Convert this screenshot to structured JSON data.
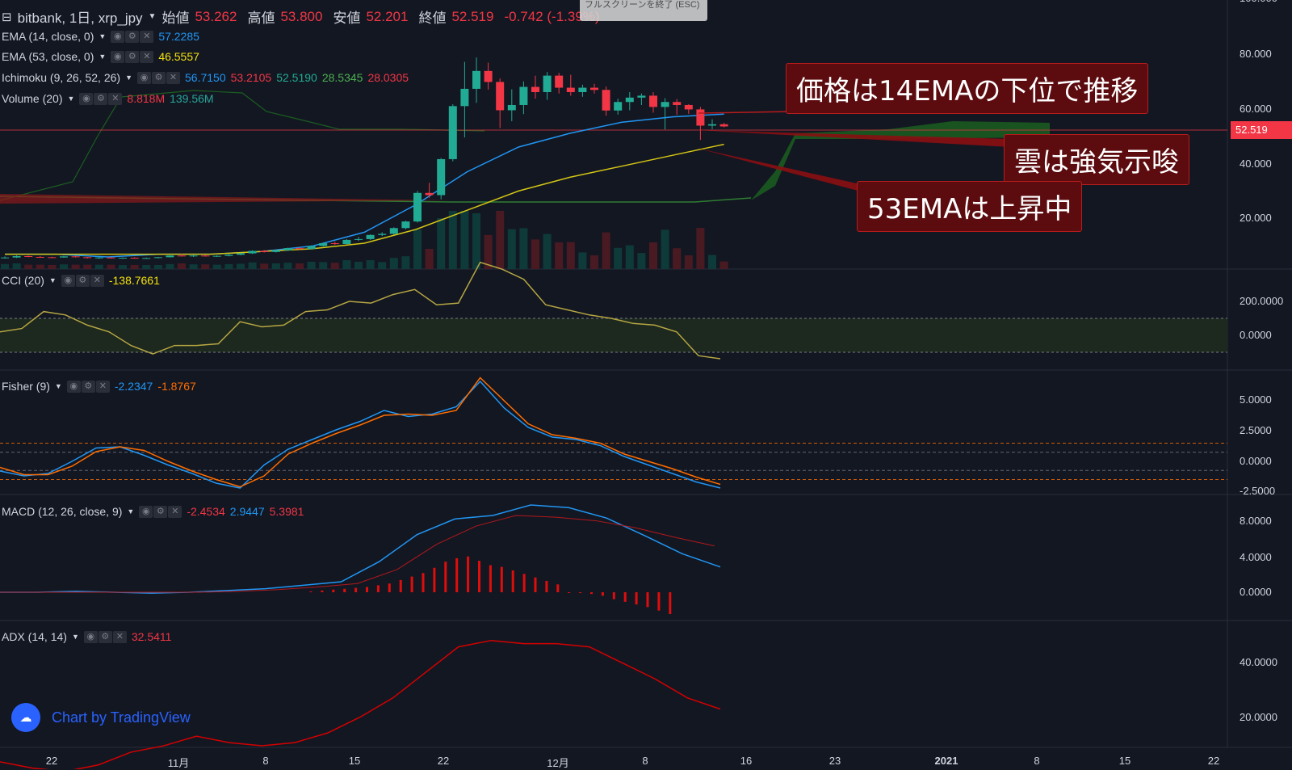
{
  "header": {
    "collapse_glyph": "⊟",
    "symbol": "bitbank, 1日, xrp_jpy",
    "open_label": "始値",
    "open": "53.262",
    "high_label": "高値",
    "high": "53.800",
    "low_label": "安値",
    "low": "52.201",
    "close_label": "終値",
    "close": "52.519",
    "change": "-0.742 (-1.39%)",
    "esc_tip": "フルスクリーンを終了 (ESC)"
  },
  "legends": {
    "ema14": {
      "label": "EMA (14, close, 0)",
      "value": "57.2285",
      "color": "#2196f3"
    },
    "ema53": {
      "label": "EMA (53, close, 0)",
      "value": "46.5557",
      "color": "#f5e20b"
    },
    "ichimoku": {
      "label": "Ichimoku (9, 26, 52, 26)",
      "values": [
        "56.7150",
        "53.2105",
        "52.5190",
        "28.5345",
        "28.0305"
      ],
      "colors": [
        "#2196f3",
        "#f23645",
        "#22ab94",
        "#4caf50",
        "#f23645"
      ]
    },
    "volume": {
      "label": "Volume (20)",
      "values": [
        "8.818M",
        "139.56M"
      ],
      "colors": [
        "#f23645",
        "#26a69a"
      ]
    },
    "cci": {
      "label": "CCI (20)",
      "value": "-138.7661",
      "color": "#f5e20b"
    },
    "fisher": {
      "label": "Fisher (9)",
      "values": [
        "-2.2347",
        "-1.8767"
      ],
      "colors": [
        "#2196f3",
        "#ff6d00"
      ]
    },
    "macd": {
      "label": "MACD (12, 26, close, 9)",
      "values": [
        "-2.4534",
        "2.9447",
        "5.3981"
      ],
      "colors": [
        "#f23645",
        "#2196f3",
        "#f23645"
      ]
    },
    "adx": {
      "label": "ADX (14, 14)",
      "value": "32.5411",
      "color": "#f23645"
    }
  },
  "annotations": [
    "価格は14EMAの下位で推移",
    "雲は強気示唆",
    "53EMAは上昇中"
  ],
  "price_tag": "52.519",
  "watermark": "Chart by TradingView",
  "chart_data": [
    {
      "type": "line",
      "title": "",
      "xlabel": "",
      "ylabel": "",
      "ylim": [
        0,
        100
      ],
      "x_tick_labels": [
        "22",
        "11月",
        "8",
        "15",
        "22",
        "12月",
        "8",
        "16",
        "23",
        "2021",
        "8",
        "15",
        "22"
      ],
      "y_tick_labels": [
        "100.000",
        "80.000",
        "60.000",
        "40.000",
        "20.000"
      ],
      "series": [
        {
          "name": "EMA 14",
          "values": [
            6,
            6,
            5,
            6,
            6,
            7,
            9,
            14,
            24,
            36,
            45,
            50,
            54,
            56,
            57
          ]
        },
        {
          "name": "EMA 53",
          "values": [
            6,
            6,
            6,
            6,
            6,
            7,
            8,
            10,
            15,
            22,
            29,
            34,
            38,
            42,
            46
          ]
        }
      ],
      "ohlc": [
        {
          "o": 4.6,
          "h": 5.2,
          "l": 4.4,
          "c": 4.8
        },
        {
          "o": 4.8,
          "h": 5.6,
          "l": 4.6,
          "c": 5.3
        },
        {
          "o": 5.3,
          "h": 5.5,
          "l": 4.9,
          "c": 5.0
        },
        {
          "o": 5.0,
          "h": 5.3,
          "l": 4.7,
          "c": 4.9
        },
        {
          "o": 4.9,
          "h": 5.1,
          "l": 4.6,
          "c": 4.8
        },
        {
          "o": 4.8,
          "h": 5.4,
          "l": 4.7,
          "c": 5.2
        },
        {
          "o": 5.2,
          "h": 5.4,
          "l": 4.8,
          "c": 4.9
        },
        {
          "o": 4.9,
          "h": 5.0,
          "l": 4.4,
          "c": 4.6
        },
        {
          "o": 4.6,
          "h": 4.9,
          "l": 4.3,
          "c": 4.8
        },
        {
          "o": 4.8,
          "h": 5.0,
          "l": 4.4,
          "c": 4.5
        },
        {
          "o": 4.5,
          "h": 4.8,
          "l": 4.3,
          "c": 4.7
        },
        {
          "o": 4.7,
          "h": 4.9,
          "l": 4.4,
          "c": 4.5
        },
        {
          "o": 4.5,
          "h": 4.8,
          "l": 4.3,
          "c": 4.6
        },
        {
          "o": 4.6,
          "h": 5.0,
          "l": 4.5,
          "c": 4.9
        },
        {
          "o": 4.9,
          "h": 5.6,
          "l": 4.8,
          "c": 5.5
        },
        {
          "o": 5.5,
          "h": 6.2,
          "l": 5.2,
          "c": 5.3
        },
        {
          "o": 5.3,
          "h": 5.7,
          "l": 5.0,
          "c": 5.5
        },
        {
          "o": 5.5,
          "h": 5.8,
          "l": 5.1,
          "c": 5.2
        },
        {
          "o": 5.2,
          "h": 5.6,
          "l": 5.0,
          "c": 5.4
        },
        {
          "o": 5.4,
          "h": 6.0,
          "l": 5.2,
          "c": 5.8
        },
        {
          "o": 5.8,
          "h": 6.5,
          "l": 5.6,
          "c": 6.3
        },
        {
          "o": 6.3,
          "h": 7.4,
          "l": 6.1,
          "c": 7.2
        },
        {
          "o": 7.2,
          "h": 7.5,
          "l": 6.6,
          "c": 6.8
        },
        {
          "o": 6.8,
          "h": 7.6,
          "l": 6.6,
          "c": 7.4
        },
        {
          "o": 7.4,
          "h": 8.4,
          "l": 7.2,
          "c": 8.2
        },
        {
          "o": 8.2,
          "h": 8.6,
          "l": 7.6,
          "c": 7.9
        },
        {
          "o": 7.9,
          "h": 9.2,
          "l": 7.7,
          "c": 9.0
        },
        {
          "o": 9.0,
          "h": 10.2,
          "l": 8.8,
          "c": 10.0
        },
        {
          "o": 10.0,
          "h": 10.6,
          "l": 9.4,
          "c": 9.7
        },
        {
          "o": 9.7,
          "h": 11.5,
          "l": 9.5,
          "c": 11.2
        },
        {
          "o": 11.2,
          "h": 12.3,
          "l": 10.8,
          "c": 11.5
        },
        {
          "o": 11.5,
          "h": 13.2,
          "l": 11.2,
          "c": 13.0
        },
        {
          "o": 13.0,
          "h": 14.0,
          "l": 12.6,
          "c": 13.4
        },
        {
          "o": 13.4,
          "h": 15.8,
          "l": 13.1,
          "c": 15.5
        },
        {
          "o": 15.5,
          "h": 18.2,
          "l": 15.0,
          "c": 17.9
        },
        {
          "o": 17.9,
          "h": 29.0,
          "l": 17.5,
          "c": 28.3
        },
        {
          "o": 28.3,
          "h": 32.0,
          "l": 26.5,
          "c": 27.5
        },
        {
          "o": 27.5,
          "h": 41.0,
          "l": 26.0,
          "c": 40.6
        },
        {
          "o": 40.6,
          "h": 60.6,
          "l": 39.8,
          "c": 59.9
        },
        {
          "o": 59.9,
          "h": 76.0,
          "l": 48.5,
          "c": 66.2
        },
        {
          "o": 66.2,
          "h": 77.6,
          "l": 61.1,
          "c": 72.7
        },
        {
          "o": 72.7,
          "h": 75.7,
          "l": 65.9,
          "c": 68.7
        },
        {
          "o": 68.7,
          "h": 70.0,
          "l": 51.9,
          "c": 58.4
        },
        {
          "o": 58.4,
          "h": 66.0,
          "l": 54.4,
          "c": 60.3
        },
        {
          "o": 60.3,
          "h": 68.9,
          "l": 57.0,
          "c": 66.9
        },
        {
          "o": 66.9,
          "h": 71.0,
          "l": 62.6,
          "c": 65.0
        },
        {
          "o": 65.0,
          "h": 72.3,
          "l": 62.2,
          "c": 71.0
        },
        {
          "o": 71.0,
          "h": 72.0,
          "l": 64.5,
          "c": 66.6
        },
        {
          "o": 66.6,
          "h": 71.3,
          "l": 63.7,
          "c": 65.0
        },
        {
          "o": 65.0,
          "h": 67.7,
          "l": 63.3,
          "c": 66.6
        },
        {
          "o": 66.6,
          "h": 68.0,
          "l": 64.5,
          "c": 65.8
        },
        {
          "o": 65.8,
          "h": 67.0,
          "l": 56.4,
          "c": 58.3
        },
        {
          "o": 58.3,
          "h": 62.6,
          "l": 56.8,
          "c": 61.4
        },
        {
          "o": 61.4,
          "h": 65.0,
          "l": 58.4,
          "c": 63.0
        },
        {
          "o": 63.0,
          "h": 64.5,
          "l": 60.3,
          "c": 63.7
        },
        {
          "o": 63.7,
          "h": 65.0,
          "l": 57.5,
          "c": 59.6
        },
        {
          "o": 59.6,
          "h": 62.8,
          "l": 51.4,
          "c": 61.4
        },
        {
          "o": 61.4,
          "h": 62.5,
          "l": 56.8,
          "c": 60.3
        },
        {
          "o": 60.3,
          "h": 60.6,
          "l": 57.1,
          "c": 58.7
        },
        {
          "o": 58.7,
          "h": 59.6,
          "l": 47.6,
          "c": 52.8
        },
        {
          "o": 52.8,
          "h": 55.1,
          "l": 51.5,
          "c": 53.3
        },
        {
          "o": 53.3,
          "h": 53.8,
          "l": 52.2,
          "c": 52.5
        }
      ]
    },
    {
      "type": "line",
      "title": "",
      "y_tick_labels": [
        "200.0000",
        "0.0000"
      ],
      "band": [
        100,
        -100
      ],
      "series": [
        {
          "name": "CCI",
          "values": [
            20,
            40,
            140,
            120,
            60,
            20,
            -60,
            -110,
            -60,
            -60,
            -50,
            80,
            50,
            60,
            140,
            150,
            200,
            190,
            240,
            270,
            180,
            190,
            430,
            390,
            330,
            180,
            150,
            120,
            100,
            70,
            60,
            20,
            -120,
            -138
          ]
        }
      ]
    },
    {
      "type": "line",
      "title": "",
      "y_tick_labels": [
        "5.0000",
        "2.5000",
        "0.0000",
        "-2.5000"
      ],
      "series": [
        {
          "name": "Fisher",
          "values": [
            -0.8,
            -1.2,
            -1.0,
            0.0,
            1.1,
            1.2,
            0.5,
            -0.3,
            -1.0,
            -1.8,
            -2.2,
            -0.3,
            1.0,
            1.8,
            2.6,
            3.3,
            4.2,
            3.7,
            3.9,
            4.5,
            6.6,
            4.4,
            2.8,
            2.0,
            1.8,
            1.3,
            0.4,
            -0.3,
            -1.0,
            -1.7,
            -2.2
          ]
        },
        {
          "name": "Trigger",
          "values": [
            -0.5,
            -1.1,
            -1.1,
            -0.4,
            0.8,
            1.2,
            0.9,
            0.0,
            -0.8,
            -1.5,
            -2.1,
            -1.2,
            0.6,
            1.5,
            2.3,
            3.0,
            3.8,
            3.9,
            3.8,
            4.2,
            6.9,
            5.0,
            3.1,
            2.2,
            1.9,
            1.5,
            0.6,
            0.0,
            -0.6,
            -1.3,
            -1.9
          ]
        }
      ]
    },
    {
      "type": "bar",
      "title": "",
      "y_tick_labels": [
        "8.0000",
        "4.0000",
        "0.0000"
      ],
      "series": [
        {
          "name": "MACD",
          "values": [
            0.0,
            0.0,
            0.1,
            0.0,
            -0.1,
            0.0,
            0.2,
            0.4,
            0.8,
            1.2,
            3.5,
            6.6,
            8.4,
            8.8,
            10.0,
            9.7,
            8.5,
            6.5,
            4.4,
            2.9
          ]
        },
        {
          "name": "Signal",
          "values": [
            0.0,
            0.0,
            0.0,
            0.0,
            0.0,
            0.0,
            0.1,
            0.3,
            0.6,
            1.0,
            2.6,
            5.5,
            7.6,
            8.8,
            8.6,
            8.2,
            7.4,
            6.3,
            5.3
          ]
        },
        {
          "name": "Histogram",
          "values": [
            0.1,
            0.2,
            0.3,
            0.4,
            0.5,
            0.6,
            0.8,
            1.0,
            1.4,
            1.8,
            2.2,
            2.8,
            3.5,
            3.9,
            4.1,
            3.6,
            3.1,
            2.9,
            2.5,
            2.1,
            1.7,
            1.3,
            0.9,
            0.0,
            -0.1,
            -0.2,
            -0.4,
            -0.8,
            -1.1,
            -1.4,
            -1.7,
            -2.1,
            -2.5
          ]
        }
      ]
    },
    {
      "type": "line",
      "title": "",
      "y_tick_labels": [
        "40.0000",
        "20.0000"
      ],
      "series": [
        {
          "name": "ADX",
          "values": [
            16,
            14,
            13,
            15,
            19,
            21,
            24,
            22,
            21,
            22,
            25,
            30,
            36,
            44,
            52,
            54,
            53,
            53,
            52,
            47,
            42,
            36,
            32.5
          ]
        }
      ]
    }
  ]
}
